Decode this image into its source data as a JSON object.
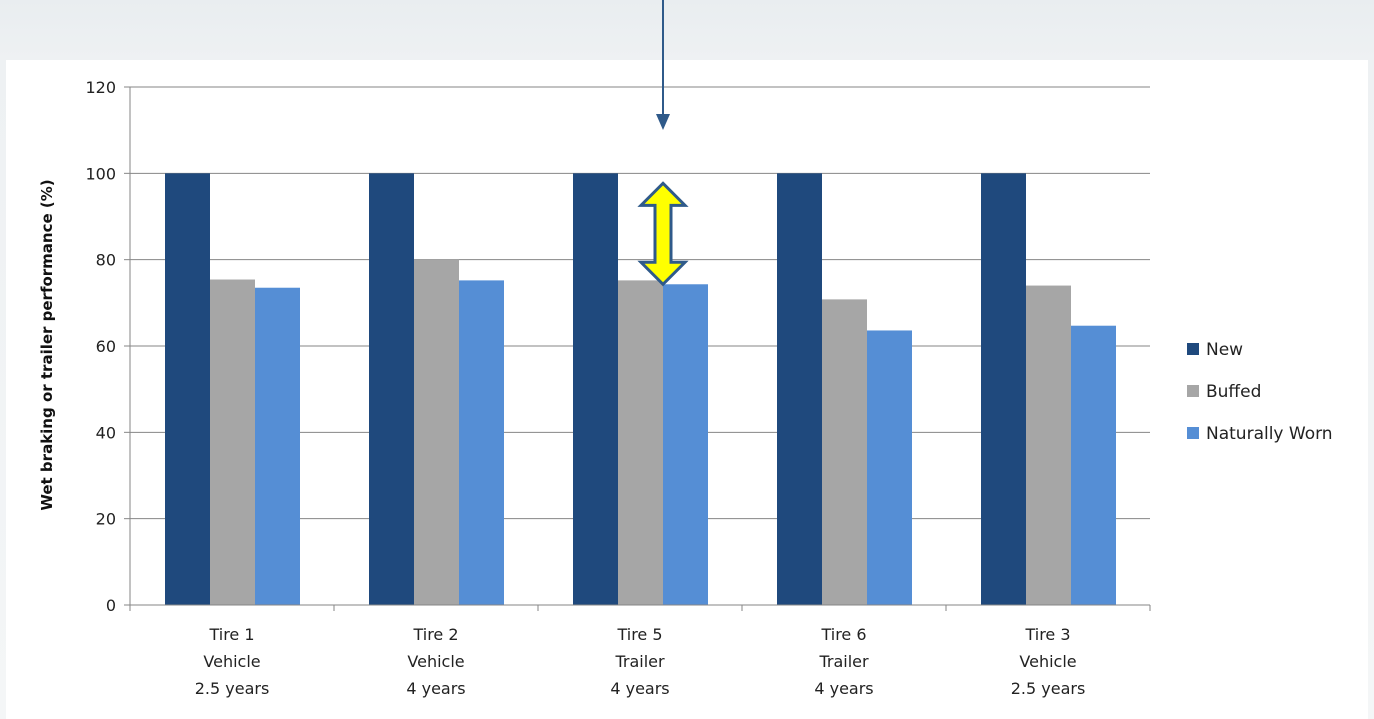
{
  "chart_data": {
    "type": "bar",
    "title": "",
    "xlabel": "",
    "ylabel": "Wet braking or trailer performance (%)",
    "ylim": [
      0,
      120
    ],
    "yticks": [
      0,
      20,
      40,
      60,
      80,
      100,
      120
    ],
    "grid": true,
    "legend_position": "right",
    "categories": [
      [
        "Tire 1",
        "Vehicle",
        "2.5 years"
      ],
      [
        "Tire 2",
        "Vehicle",
        "4 years"
      ],
      [
        "Tire 5",
        "Trailer",
        "4 years"
      ],
      [
        "Tire 6",
        "Trailer",
        "4 years"
      ],
      [
        "Tire 3",
        "Vehicle",
        "2.5 years"
      ]
    ],
    "series": [
      {
        "name": "New",
        "color": "#1f497d",
        "values": [
          100,
          100,
          100,
          100,
          100
        ]
      },
      {
        "name": "Buffed",
        "color": "#a6a6a6",
        "values": [
          75.4,
          80,
          75.2,
          70.8,
          74
        ]
      },
      {
        "name": "Naturally Worn",
        "color": "#558ed5",
        "values": [
          73.5,
          75.2,
          74.3,
          63.6,
          64.7
        ]
      }
    ],
    "annotations": [
      {
        "type": "arrow-down",
        "category_index": 2,
        "color": "#2f5a8a"
      },
      {
        "type": "double-arrow",
        "category_index": 2,
        "from": 75,
        "to": 100,
        "fill": "#ffff00",
        "stroke": "#2f5a8a"
      }
    ]
  }
}
